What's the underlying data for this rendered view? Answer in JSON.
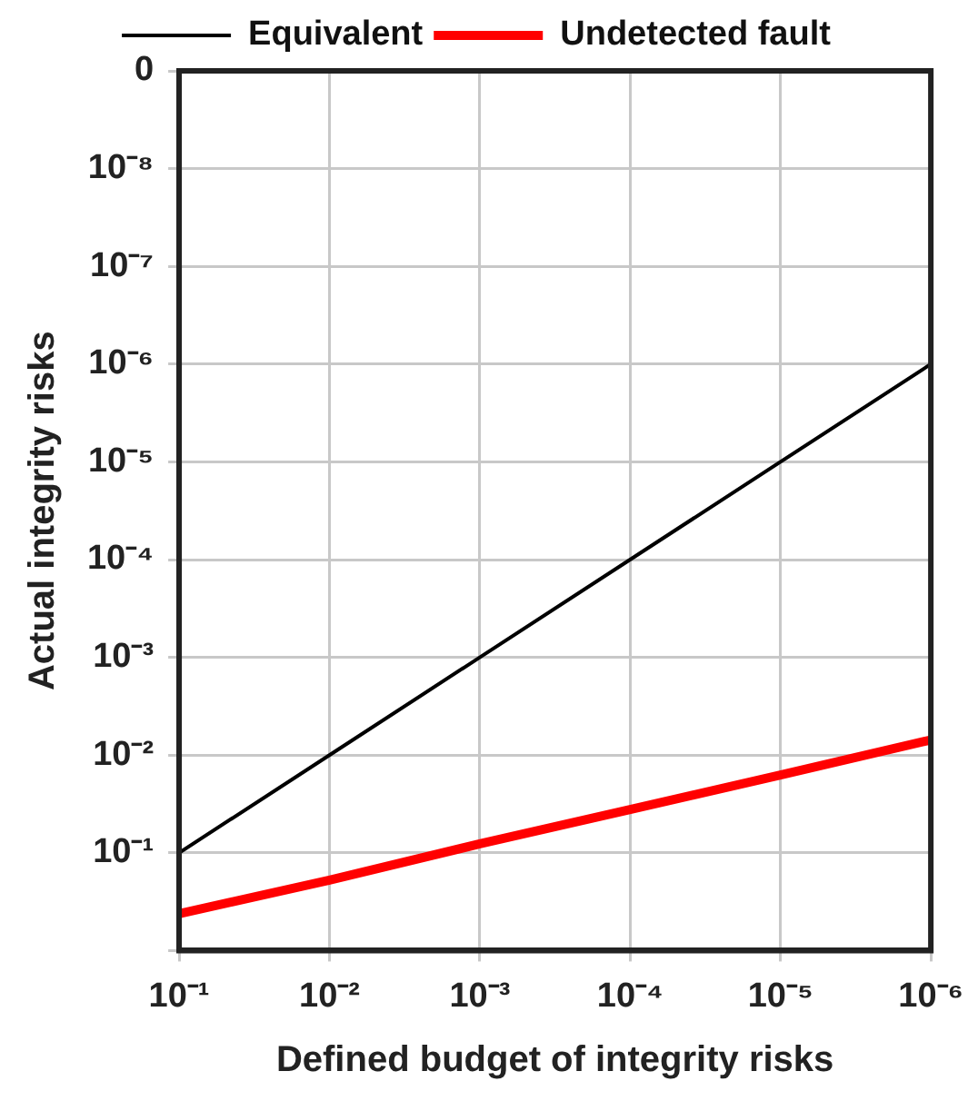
{
  "chart_data": {
    "type": "line",
    "xlabel": "Defined budget of integrity risks",
    "ylabel": "Actual integrity risks",
    "log": "xy",
    "grid": true,
    "legend": "top",
    "marker": "none",
    "line_style": "solid",
    "x": [
      0.1,
      0.01,
      0.001,
      0.0001,
      1e-05,
      1e-06
    ],
    "xlim": [
      0.1,
      1e-06
    ],
    "xticks": [
      {
        "value": 0.1,
        "label": "10⁻¹"
      },
      {
        "value": 0.01,
        "label": "10⁻²"
      },
      {
        "value": 0.001,
        "label": "10⁻³"
      },
      {
        "value": 0.0001,
        "label": "10⁻⁴"
      },
      {
        "value": 1e-05,
        "label": "10⁻⁵"
      },
      {
        "value": 1e-06,
        "label": "10⁻⁶"
      }
    ],
    "ylim": [
      1,
      1e-09
    ],
    "yticks": [
      {
        "value": 1,
        "label": null
      },
      {
        "value": 0.1,
        "label": "10⁻¹"
      },
      {
        "value": 0.01,
        "label": "10⁻²"
      },
      {
        "value": 0.001,
        "label": "10⁻³"
      },
      {
        "value": 0.0001,
        "label": "10⁻⁴"
      },
      {
        "value": 1e-05,
        "label": "10⁻⁵"
      },
      {
        "value": 1e-06,
        "label": "10⁻⁶"
      },
      {
        "value": 1e-07,
        "label": "10⁻⁷"
      },
      {
        "value": 1e-08,
        "label": "10⁻⁸"
      },
      {
        "value": 1e-09,
        "label": "0"
      }
    ],
    "series": [
      {
        "name": "Equivalent",
        "color": "#000000",
        "values": [
          0.1,
          0.01,
          0.001,
          0.0001,
          1e-05,
          1e-06
        ]
      },
      {
        "name": "Undetected fault",
        "color": "#ff0000",
        "values": [
          0.42,
          0.19,
          0.081,
          0.036,
          0.016,
          0.007
        ]
      }
    ]
  }
}
